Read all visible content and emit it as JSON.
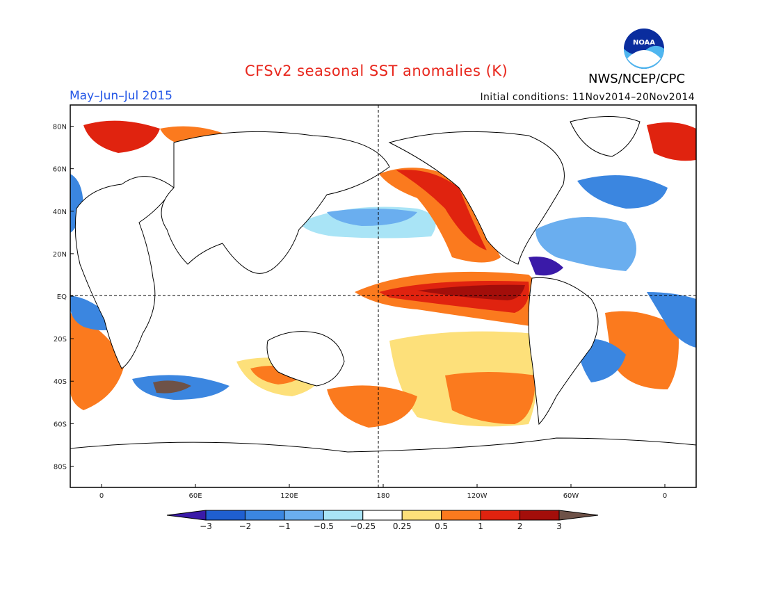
{
  "header": {
    "title": "CFSv2 seasonal SST anomalies (K)",
    "period": "May–Jun–Jul 2015",
    "initial_conditions": "Initial conditions: 11Nov2014–20Nov2014",
    "org": "NWS/NCEP/CPC",
    "logo_text": "NOAA"
  },
  "map": {
    "lat_labels": [
      "80N",
      "60N",
      "40N",
      "20N",
      "EQ",
      "20S",
      "40S",
      "60S",
      "80S"
    ],
    "lat_values": [
      80,
      60,
      40,
      20,
      0,
      -20,
      -40,
      -60,
      -80
    ],
    "lon_labels": [
      "0",
      "60E",
      "120E",
      "180",
      "120W",
      "60W",
      "0"
    ],
    "lon_values": [
      0,
      60,
      120,
      180,
      240,
      300,
      360
    ],
    "lon_range": [
      -20,
      380
    ],
    "lat_range": [
      -90,
      90
    ]
  },
  "colorbar": {
    "labels": [
      "−3",
      "−2",
      "−1",
      "−0.5",
      "−0.25",
      "0.25",
      "0.5",
      "1",
      "2",
      "3"
    ],
    "colors": [
      "#3a1aa8",
      "#1f5fd0",
      "#3b86e0",
      "#6aaeef",
      "#a9e4f6",
      "#ffffff",
      "#fde07a",
      "#fb7a1e",
      "#e0230f",
      "#a30e0a",
      "#6e5248"
    ]
  }
}
